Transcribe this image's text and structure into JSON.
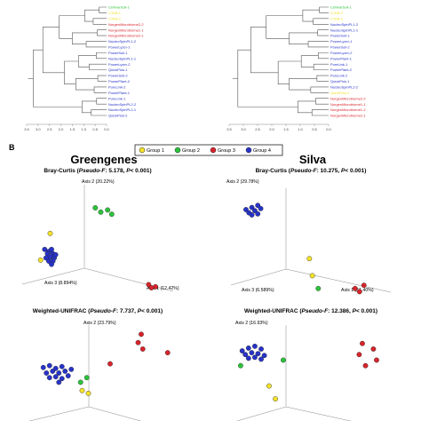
{
  "colors": {
    "group1": "#f3e229",
    "group2": "#2bc33a",
    "group3": "#d8242b",
    "group4": "#2733c8",
    "tree_line": "#555555",
    "axis_line": "#888888"
  },
  "panel_label": "B",
  "col_titles": [
    "Greengenes",
    "Silva"
  ],
  "legend": [
    {
      "label": "Group 1",
      "color_key": "group1"
    },
    {
      "label": "Group 2",
      "color_key": "group2"
    },
    {
      "label": "Group 3",
      "color_key": "group3"
    },
    {
      "label": "Group 4",
      "color_key": "group4"
    }
  ],
  "dendrograms": [
    {
      "leaves": [
        {
          "label": "CeNvarSoil-1",
          "group": "group2"
        },
        {
          "label": "CTAB-1",
          "group": "group1"
        },
        {
          "label": "CTAB-2",
          "group": "group1"
        },
        {
          "label": "NorgenMicrobiome2-2",
          "group": "group3"
        },
        {
          "label": "NorgenMicrobiome1-1",
          "group": "group3"
        },
        {
          "label": "NorgenMicrobiome2-1",
          "group": "group3"
        },
        {
          "label": "NucleoSpinPL1-2",
          "group": "group4"
        },
        {
          "label": "PowerLyzer-1",
          "group": "group4"
        },
        {
          "label": "PowerSoil-1",
          "group": "group4"
        },
        {
          "label": "NucleoSpinPL1-1",
          "group": "group4"
        },
        {
          "label": "PowerLyzer-2",
          "group": "group4"
        },
        {
          "label": "QuickPick-1",
          "group": "group4"
        },
        {
          "label": "PowerSoil-2",
          "group": "group4"
        },
        {
          "label": "PowerPlant-2",
          "group": "group4"
        },
        {
          "label": "PureLink-2",
          "group": "group4"
        },
        {
          "label": "PowerPlant-1",
          "group": "group4"
        },
        {
          "label": "PureLink-1",
          "group": "group4"
        },
        {
          "label": "NucleoSpinPL2-2",
          "group": "group4"
        },
        {
          "label": "NucleoSpinPL2-1",
          "group": "group4"
        },
        {
          "label": "QuickPick-2",
          "group": "group4"
        }
      ],
      "ticks": [
        "3.5",
        "3.0",
        "2.5",
        "2.0",
        "1.5",
        "1.0",
        "0.5",
        "0.0"
      ]
    },
    {
      "leaves": [
        {
          "label": "CeNvarSoil-1",
          "group": "group2"
        },
        {
          "label": "CTAB-1",
          "group": "group1"
        },
        {
          "label": "CTAB-2",
          "group": "group1"
        },
        {
          "label": "NucleoSpinPL1-2",
          "group": "group4"
        },
        {
          "label": "NucleoSpinPL1-1",
          "group": "group4"
        },
        {
          "label": "PowerSoil-1",
          "group": "group4"
        },
        {
          "label": "PowerLyzer-1",
          "group": "group4"
        },
        {
          "label": "PowerSoil-2",
          "group": "group4"
        },
        {
          "label": "PowerLyzer-2",
          "group": "group4"
        },
        {
          "label": "PowerPlant-1",
          "group": "group4"
        },
        {
          "label": "PureLink-1",
          "group": "group4"
        },
        {
          "label": "PowerPlant-2",
          "group": "group4"
        },
        {
          "label": "PureLink-2",
          "group": "group4"
        },
        {
          "label": "QuickPick-1",
          "group": "group4"
        },
        {
          "label": "NucleoSpinPL2-2",
          "group": "group4"
        },
        {
          "label": "QuickPick-2",
          "group": "group1"
        },
        {
          "label": "NorgenMicrobiome2-2",
          "group": "group3"
        },
        {
          "label": "NorgenMicrobiome1-1",
          "group": "group3"
        },
        {
          "label": "NorgenMicrobiome1-2",
          "group": "group3"
        },
        {
          "label": "NorgenMicrobiome2-1",
          "group": "group3"
        }
      ],
      "ticks": [
        "3.5",
        "3.0",
        "2.5",
        "2.0",
        "1.5",
        "1.0",
        "0.5",
        "0.0"
      ]
    }
  ],
  "chart_data": [
    {
      "type": "scatter",
      "title": "Bray-Curtis (Pseudo-F: 5.178, P< 0.001)",
      "title_parts": [
        "Bray-Curtis (",
        "Pseudo-F",
        ": 5.178, ",
        "P",
        "< 0.001)"
      ],
      "axis_labels": [
        "Axis 2 (20.22%)",
        "Axis 3 (8.894%)",
        "Axis 1 (12.42%)"
      ],
      "points": [
        {
          "x": 0.05,
          "y": 0.31,
          "group": "group1"
        },
        {
          "x": 0.12,
          "y": 0.56,
          "group": "group1"
        },
        {
          "x": 0.45,
          "y": 0.8,
          "group": "group2"
        },
        {
          "x": 0.49,
          "y": 0.76,
          "group": "group2"
        },
        {
          "x": 0.54,
          "y": 0.78,
          "group": "group2"
        },
        {
          "x": 0.57,
          "y": 0.74,
          "group": "group2"
        },
        {
          "x": 0.84,
          "y": 0.08,
          "group": "group3"
        },
        {
          "x": 0.89,
          "y": 0.06,
          "group": "group3"
        },
        {
          "x": 0.86,
          "y": 0.05,
          "group": "group3"
        },
        {
          "x": 0.08,
          "y": 0.41,
          "group": "group4"
        },
        {
          "x": 0.11,
          "y": 0.39,
          "group": "group4"
        },
        {
          "x": 0.13,
          "y": 0.41,
          "group": "group4"
        },
        {
          "x": 0.1,
          "y": 0.37,
          "group": "group4"
        },
        {
          "x": 0.14,
          "y": 0.37,
          "group": "group4"
        },
        {
          "x": 0.12,
          "y": 0.34,
          "group": "group4"
        },
        {
          "x": 0.15,
          "y": 0.33,
          "group": "group4"
        },
        {
          "x": 0.09,
          "y": 0.33,
          "group": "group4"
        },
        {
          "x": 0.11,
          "y": 0.3,
          "group": "group4"
        },
        {
          "x": 0.14,
          "y": 0.3,
          "group": "group4"
        },
        {
          "x": 0.13,
          "y": 0.27,
          "group": "group4"
        },
        {
          "x": 0.16,
          "y": 0.36,
          "group": "group4"
        }
      ]
    },
    {
      "type": "scatter",
      "title": "Bray-Curtis (Pseudo-F: 10.275, P< 0.001)",
      "title_parts": [
        "Bray-Curtis (",
        "Pseudo-F",
        ": 10.275, ",
        "P",
        "< 0.001)"
      ],
      "axis_labels": [
        "Axis 2 (29.78%)",
        "Axis 3 (6.589%)",
        "Axis 1 (51.40%)"
      ],
      "points": [
        {
          "x": 0.09,
          "y": 0.8,
          "group": "group4"
        },
        {
          "x": 0.13,
          "y": 0.82,
          "group": "group4"
        },
        {
          "x": 0.17,
          "y": 0.84,
          "group": "group4"
        },
        {
          "x": 0.11,
          "y": 0.77,
          "group": "group4"
        },
        {
          "x": 0.15,
          "y": 0.79,
          "group": "group4"
        },
        {
          "x": 0.19,
          "y": 0.81,
          "group": "group4"
        },
        {
          "x": 0.13,
          "y": 0.75,
          "group": "group4"
        },
        {
          "x": 0.17,
          "y": 0.76,
          "group": "group4"
        },
        {
          "x": 0.52,
          "y": 0.34,
          "group": "group1"
        },
        {
          "x": 0.54,
          "y": 0.18,
          "group": "group1"
        },
        {
          "x": 0.58,
          "y": 0.06,
          "group": "group2"
        },
        {
          "x": 0.83,
          "y": 0.06,
          "group": "group3"
        },
        {
          "x": 0.86,
          "y": 0.03,
          "group": "group3"
        },
        {
          "x": 0.89,
          "y": 0.09,
          "group": "group3"
        }
      ]
    },
    {
      "type": "scatter",
      "title": "Weighted-UNIFRAC (Pseudo-F: 7.737, P< 0.001)",
      "title_parts": [
        "Weighted-UNIFRAC (",
        "Pseudo-F",
        ": 7.737, ",
        "P",
        "< 0.001)"
      ],
      "axis_labels": [
        "Axis 2 (23.79%)"
      ],
      "points": [
        {
          "x": 0.68,
          "y": 0.92,
          "group": "group3"
        },
        {
          "x": 0.66,
          "y": 0.83,
          "group": "group3"
        },
        {
          "x": 0.69,
          "y": 0.76,
          "group": "group3"
        },
        {
          "x": 0.85,
          "y": 0.72,
          "group": "group3"
        },
        {
          "x": 0.48,
          "y": 0.6,
          "group": "group3"
        },
        {
          "x": 0.05,
          "y": 0.56,
          "group": "group4"
        },
        {
          "x": 0.09,
          "y": 0.58,
          "group": "group4"
        },
        {
          "x": 0.13,
          "y": 0.55,
          "group": "group4"
        },
        {
          "x": 0.17,
          "y": 0.57,
          "group": "group4"
        },
        {
          "x": 0.07,
          "y": 0.5,
          "group": "group4"
        },
        {
          "x": 0.11,
          "y": 0.52,
          "group": "group4"
        },
        {
          "x": 0.15,
          "y": 0.5,
          "group": "group4"
        },
        {
          "x": 0.19,
          "y": 0.52,
          "group": "group4"
        },
        {
          "x": 0.09,
          "y": 0.45,
          "group": "group4"
        },
        {
          "x": 0.13,
          "y": 0.46,
          "group": "group4"
        },
        {
          "x": 0.17,
          "y": 0.44,
          "group": "group4"
        },
        {
          "x": 0.21,
          "y": 0.47,
          "group": "group4"
        },
        {
          "x": 0.23,
          "y": 0.54,
          "group": "group4"
        },
        {
          "x": 0.15,
          "y": 0.4,
          "group": "group4"
        },
        {
          "x": 0.29,
          "y": 0.4,
          "group": "group2"
        },
        {
          "x": 0.33,
          "y": 0.45,
          "group": "group2"
        },
        {
          "x": 0.3,
          "y": 0.31,
          "group": "group1"
        },
        {
          "x": 0.34,
          "y": 0.28,
          "group": "group1"
        }
      ]
    },
    {
      "type": "scatter",
      "title": "Weighted-UNIFRAC (Pseudo-F: 12.386, P< 0.001)",
      "title_parts": [
        "Weighted-UNIFRAC (",
        "Pseudo-F",
        ": 12.386, ",
        "P",
        "< 0.001)"
      ],
      "axis_labels": [
        "Axis 2 (16.93%)"
      ],
      "points": [
        {
          "x": 0.06,
          "y": 0.74,
          "group": "group4"
        },
        {
          "x": 0.1,
          "y": 0.77,
          "group": "group4"
        },
        {
          "x": 0.14,
          "y": 0.79,
          "group": "group4"
        },
        {
          "x": 0.18,
          "y": 0.76,
          "group": "group4"
        },
        {
          "x": 0.08,
          "y": 0.7,
          "group": "group4"
        },
        {
          "x": 0.12,
          "y": 0.72,
          "group": "group4"
        },
        {
          "x": 0.16,
          "y": 0.71,
          "group": "group4"
        },
        {
          "x": 0.2,
          "y": 0.69,
          "group": "group4"
        },
        {
          "x": 0.1,
          "y": 0.66,
          "group": "group4"
        },
        {
          "x": 0.14,
          "y": 0.67,
          "group": "group4"
        },
        {
          "x": 0.18,
          "y": 0.65,
          "group": "group4"
        },
        {
          "x": 0.05,
          "y": 0.58,
          "group": "group2"
        },
        {
          "x": 0.32,
          "y": 0.64,
          "group": "group2"
        },
        {
          "x": 0.23,
          "y": 0.36,
          "group": "group1"
        },
        {
          "x": 0.27,
          "y": 0.22,
          "group": "group1"
        },
        {
          "x": 0.82,
          "y": 0.82,
          "group": "group3"
        },
        {
          "x": 0.8,
          "y": 0.7,
          "group": "group3"
        },
        {
          "x": 0.89,
          "y": 0.76,
          "group": "group3"
        },
        {
          "x": 0.91,
          "y": 0.64,
          "group": "group3"
        },
        {
          "x": 0.84,
          "y": 0.58,
          "group": "group3"
        }
      ]
    }
  ]
}
